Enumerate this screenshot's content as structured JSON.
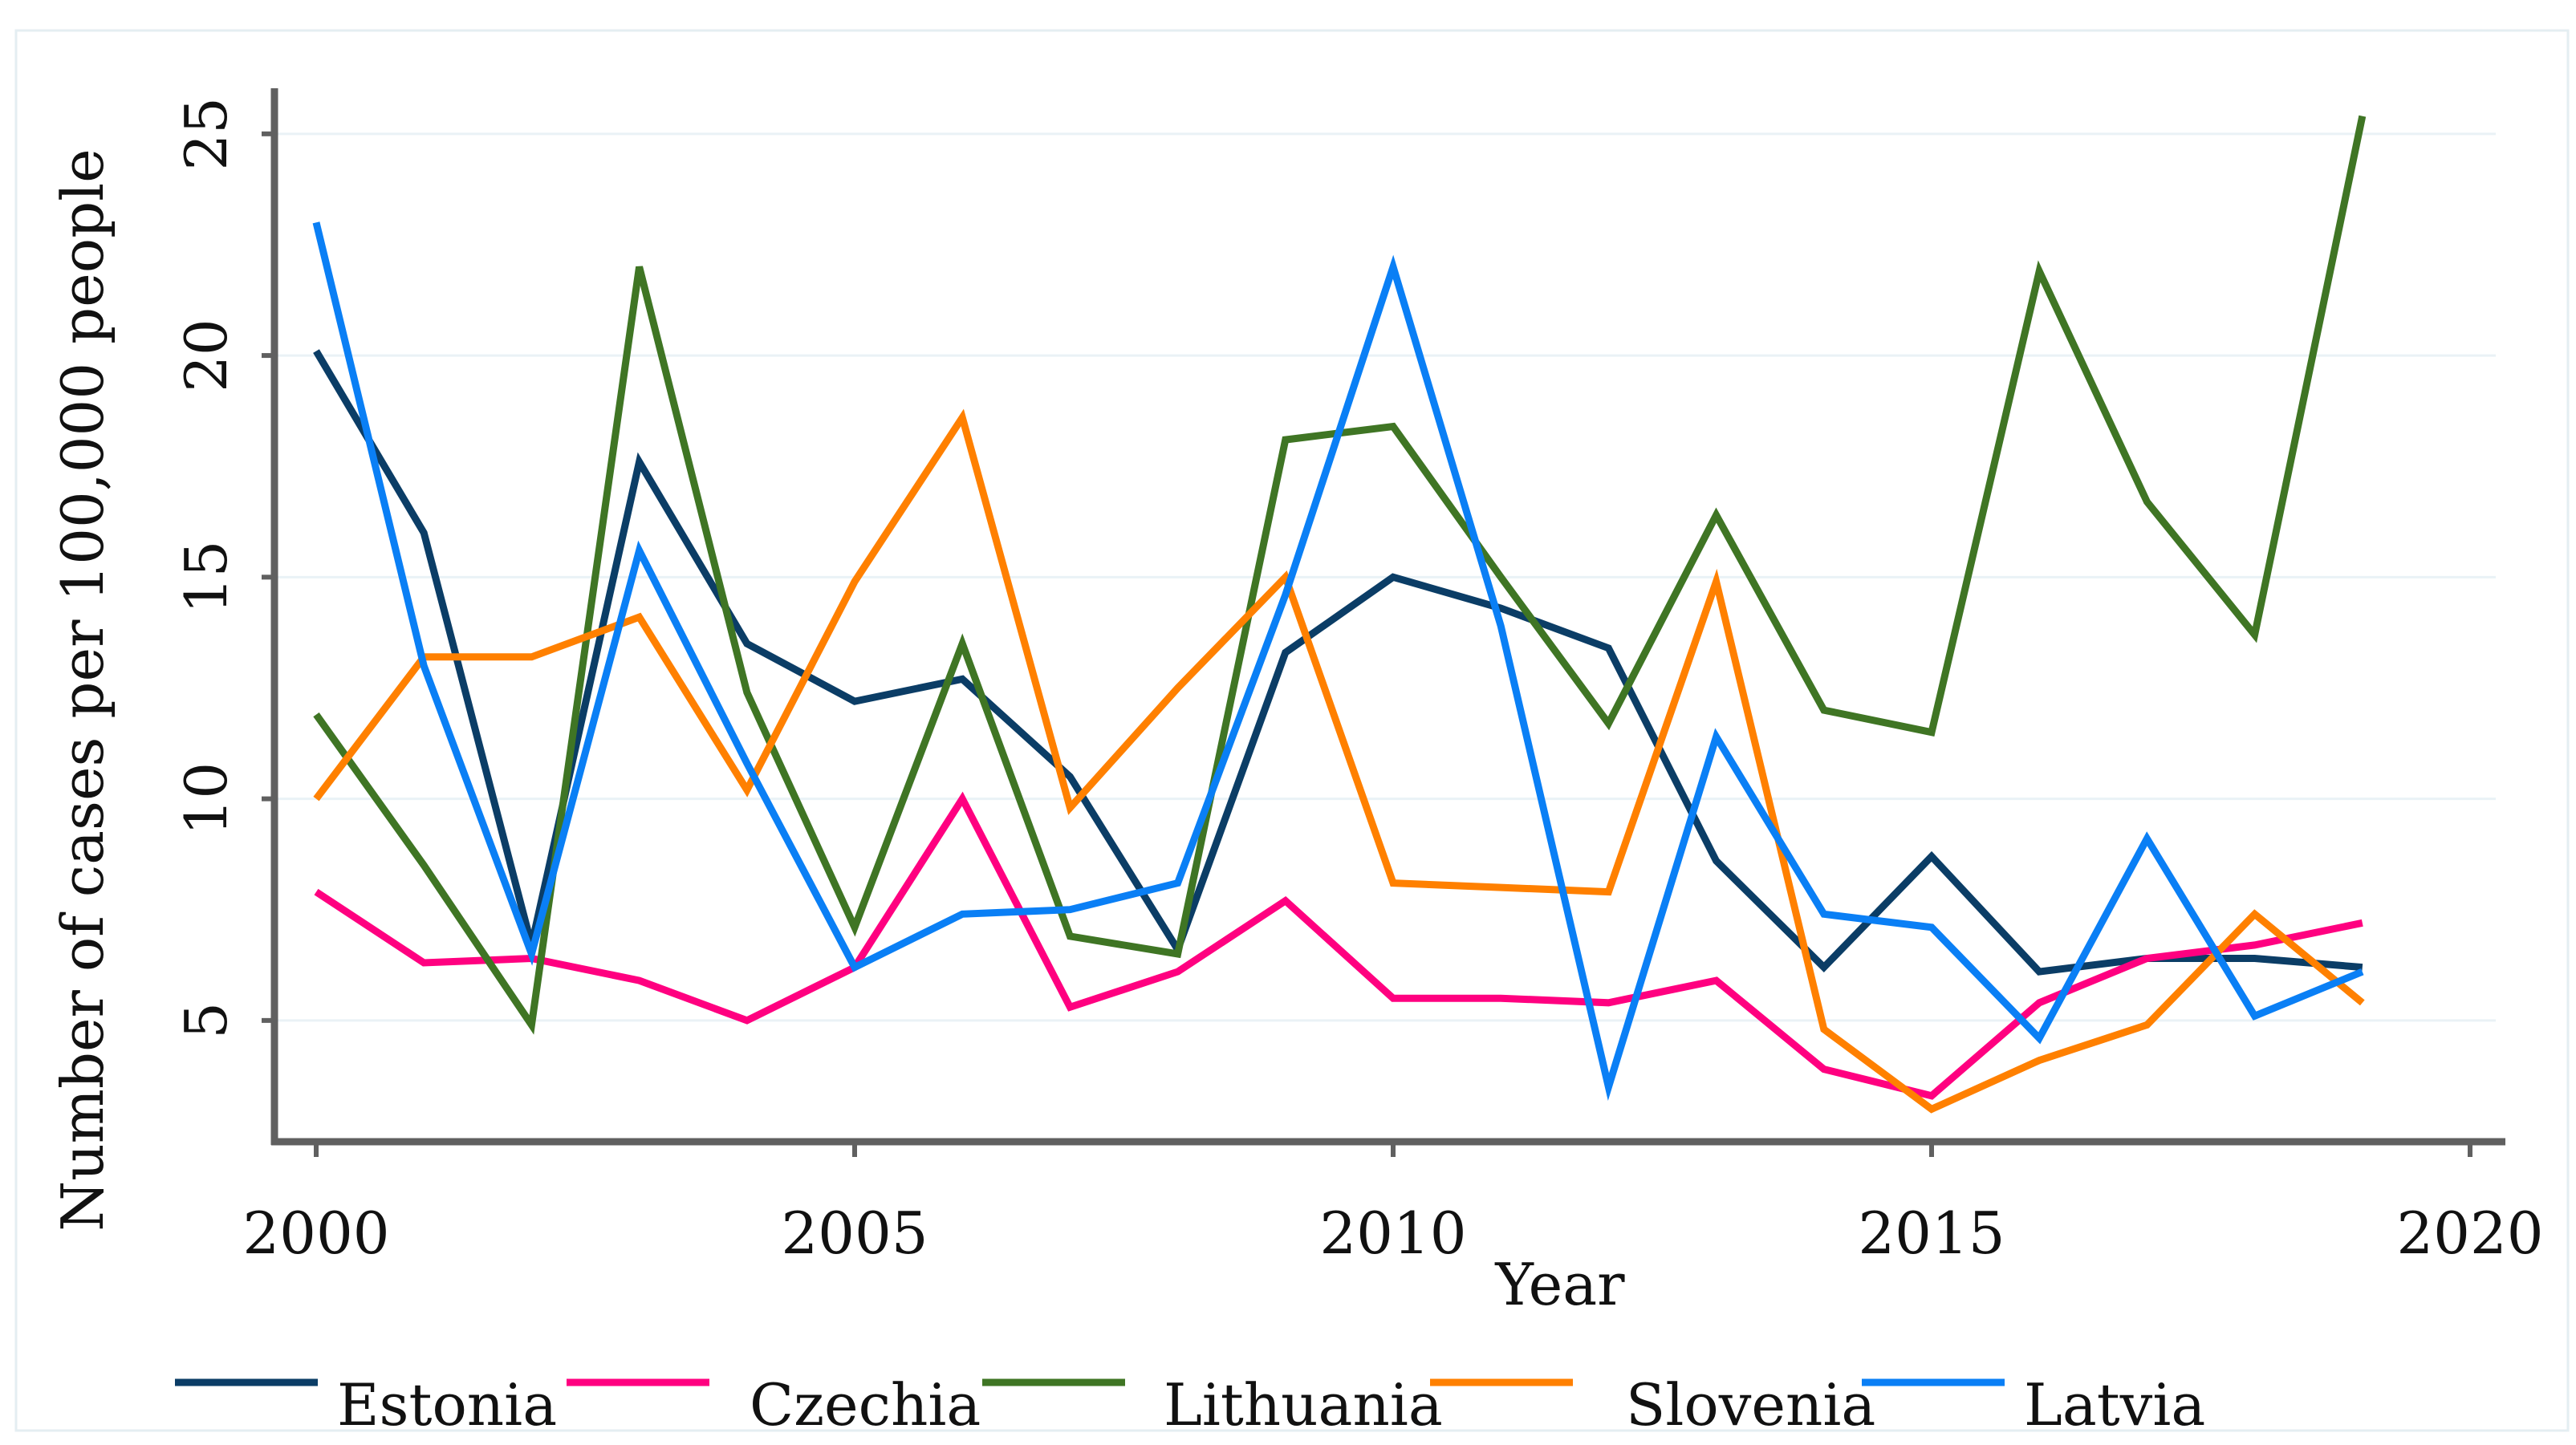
{
  "chart_data": {
    "type": "line",
    "title": "",
    "xlabel": "Year",
    "ylabel": "Number of cases per 100,000 people",
    "xlim": [
      2000,
      2020
    ],
    "ylim": [
      2.5,
      26.3
    ],
    "xticks": [
      2000,
      2005,
      2010,
      2015,
      2020
    ],
    "yticks": [
      5,
      10,
      15,
      20,
      25
    ],
    "xtick_labels": [
      "2000",
      "2005",
      "2010",
      "2015",
      "2020"
    ],
    "ytick_labels": [
      "5",
      "10",
      "15",
      "20",
      "25"
    ],
    "grid": true,
    "legend_position": "bottom",
    "x": [
      2000,
      2001,
      2002,
      2003,
      2004,
      2005,
      2006,
      2007,
      2008,
      2009,
      2010,
      2011,
      2012,
      2013,
      2014,
      2015,
      2016,
      2017,
      2018,
      2019
    ],
    "series": [
      {
        "name": "Estonia",
        "color": "#0b3d66",
        "values": [
          20.1,
          16.0,
          6.7,
          17.6,
          13.5,
          12.2,
          12.7,
          10.5,
          6.6,
          13.3,
          15.0,
          14.3,
          13.4,
          8.6,
          6.2,
          8.7,
          6.1,
          6.4,
          6.4,
          6.2
        ]
      },
      {
        "name": "Czechia",
        "color": "#ff0080",
        "values": [
          7.9,
          6.3,
          6.4,
          5.9,
          5.0,
          6.2,
          10.0,
          5.3,
          6.1,
          7.7,
          5.5,
          5.5,
          5.4,
          5.9,
          3.9,
          3.3,
          5.4,
          6.4,
          6.7,
          7.2
        ]
      },
      {
        "name": "Lithuania",
        "color": "#3f7524",
        "values": [
          11.9,
          8.5,
          4.9,
          22.0,
          12.4,
          7.1,
          13.5,
          6.9,
          6.5,
          18.1,
          18.4,
          15.0,
          11.7,
          16.4,
          12.0,
          11.5,
          21.9,
          16.7,
          13.7,
          25.4
        ]
      },
      {
        "name": "Slovenia",
        "color": "#ff8000",
        "values": [
          10.0,
          13.2,
          13.2,
          14.1,
          10.2,
          14.9,
          18.6,
          9.8,
          12.5,
          15.0,
          8.1,
          8.0,
          7.9,
          14.9,
          4.8,
          3.0,
          4.1,
          4.9,
          7.4,
          5.4
        ]
      },
      {
        "name": "Latvia",
        "color": "#0a7ff5",
        "values": [
          23.0,
          13.0,
          6.5,
          15.6,
          10.8,
          6.2,
          7.4,
          7.5,
          8.1,
          14.6,
          22.0,
          13.9,
          3.5,
          11.4,
          7.4,
          7.1,
          4.6,
          9.1,
          5.1,
          6.1
        ]
      }
    ]
  }
}
